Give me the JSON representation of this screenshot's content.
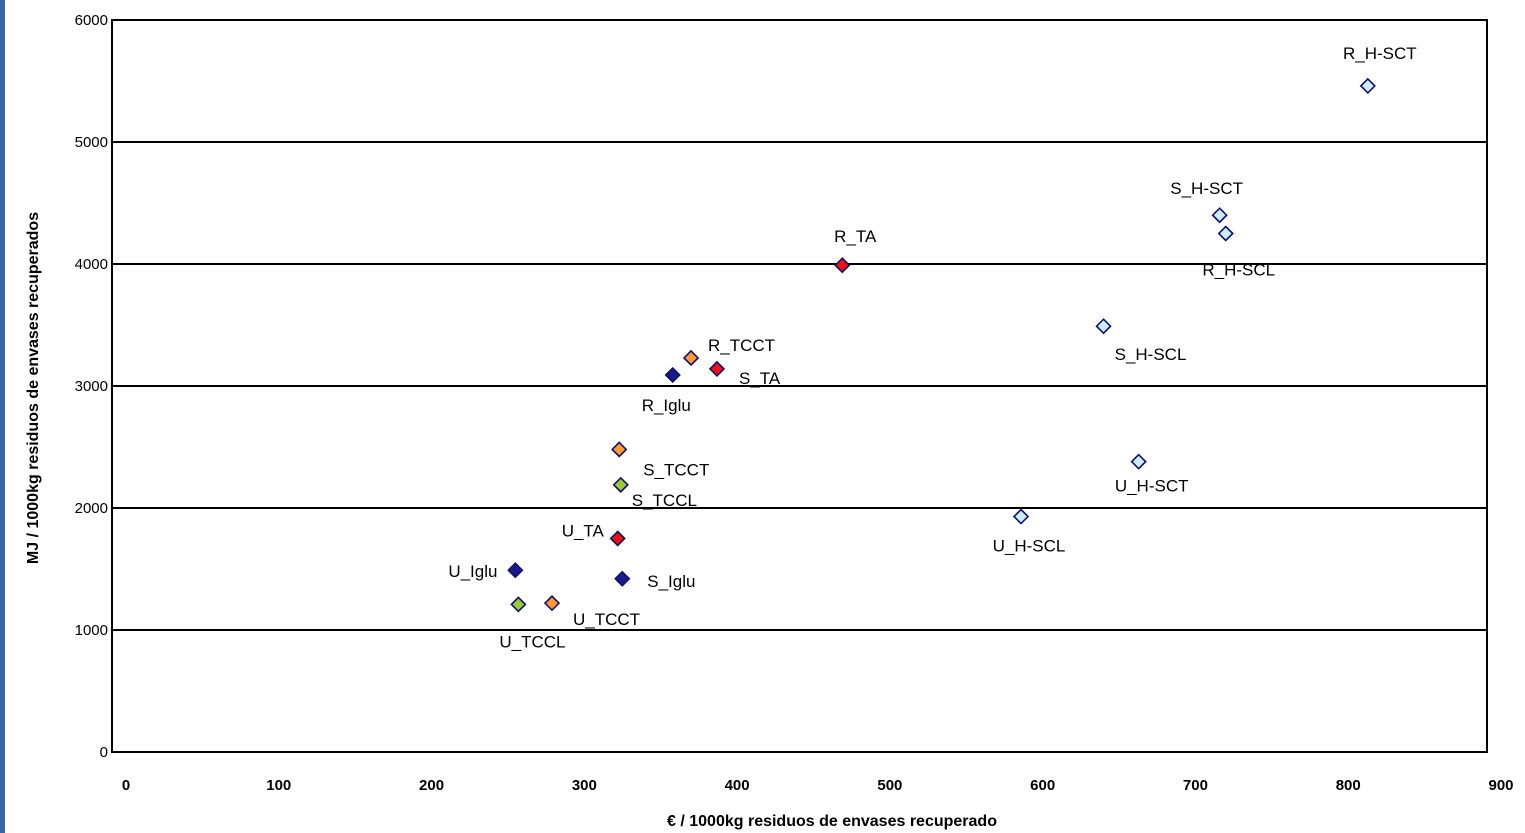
{
  "chart_data": {
    "type": "scatter",
    "title": "",
    "xlabel": "€ / 1000kg  residuos de envases recuperado",
    "ylabel": "MJ / 1000kg  residuos de envases recuperados",
    "xlim": [
      0,
      900
    ],
    "ylim": [
      0,
      6000
    ],
    "xticks": [
      0,
      100,
      200,
      300,
      400,
      500,
      600,
      700,
      800,
      900
    ],
    "yticks": [
      0,
      1000,
      2000,
      3000,
      4000,
      5000,
      6000
    ],
    "grid": "horizontal",
    "legend": "none",
    "colors": {
      "Iglu": "#1a1a8c",
      "TA": "#ee1111",
      "TCCT": "#ff9933",
      "TCCL": "#99cc33",
      "H": "#ccecff"
    },
    "points": [
      {
        "label": "R_H-SCT",
        "x": 822,
        "y": 5460,
        "group": "H"
      },
      {
        "label": "S_H-SCT",
        "x": 725,
        "y": 4400,
        "group": "H"
      },
      {
        "label": "R_H-SCL",
        "x": 729,
        "y": 4250,
        "group": "H"
      },
      {
        "label": "S_H-SCL",
        "x": 649,
        "y": 3490,
        "group": "H"
      },
      {
        "label": "U_H-SCT",
        "x": 672,
        "y": 2380,
        "group": "H"
      },
      {
        "label": "U_H-SCL",
        "x": 595,
        "y": 1930,
        "group": "H"
      },
      {
        "label": "R_TA",
        "x": 478,
        "y": 3990,
        "group": "TA"
      },
      {
        "label": "S_TA",
        "x": 396,
        "y": 3140,
        "group": "TA"
      },
      {
        "label": "U_TA",
        "x": 331,
        "y": 1750,
        "group": "TA"
      },
      {
        "label": "R_TCCT",
        "x": 379,
        "y": 3230,
        "group": "TCCT"
      },
      {
        "label": "S_TCCT",
        "x": 332,
        "y": 2480,
        "group": "TCCT"
      },
      {
        "label": "U_TCCT",
        "x": 288,
        "y": 1220,
        "group": "TCCT"
      },
      {
        "label": "S_TCCL",
        "x": 333,
        "y": 2190,
        "group": "TCCL"
      },
      {
        "label": "U_TCCL",
        "x": 266,
        "y": 1210,
        "group": "TCCL"
      },
      {
        "label": "R_Iglu",
        "x": 367,
        "y": 3090,
        "group": "Iglu"
      },
      {
        "label": "S_Iglu",
        "x": 334,
        "y": 1420,
        "group": "Iglu"
      },
      {
        "label": "U_Iglu",
        "x": 264,
        "y": 1490,
        "group": "Iglu"
      }
    ]
  }
}
